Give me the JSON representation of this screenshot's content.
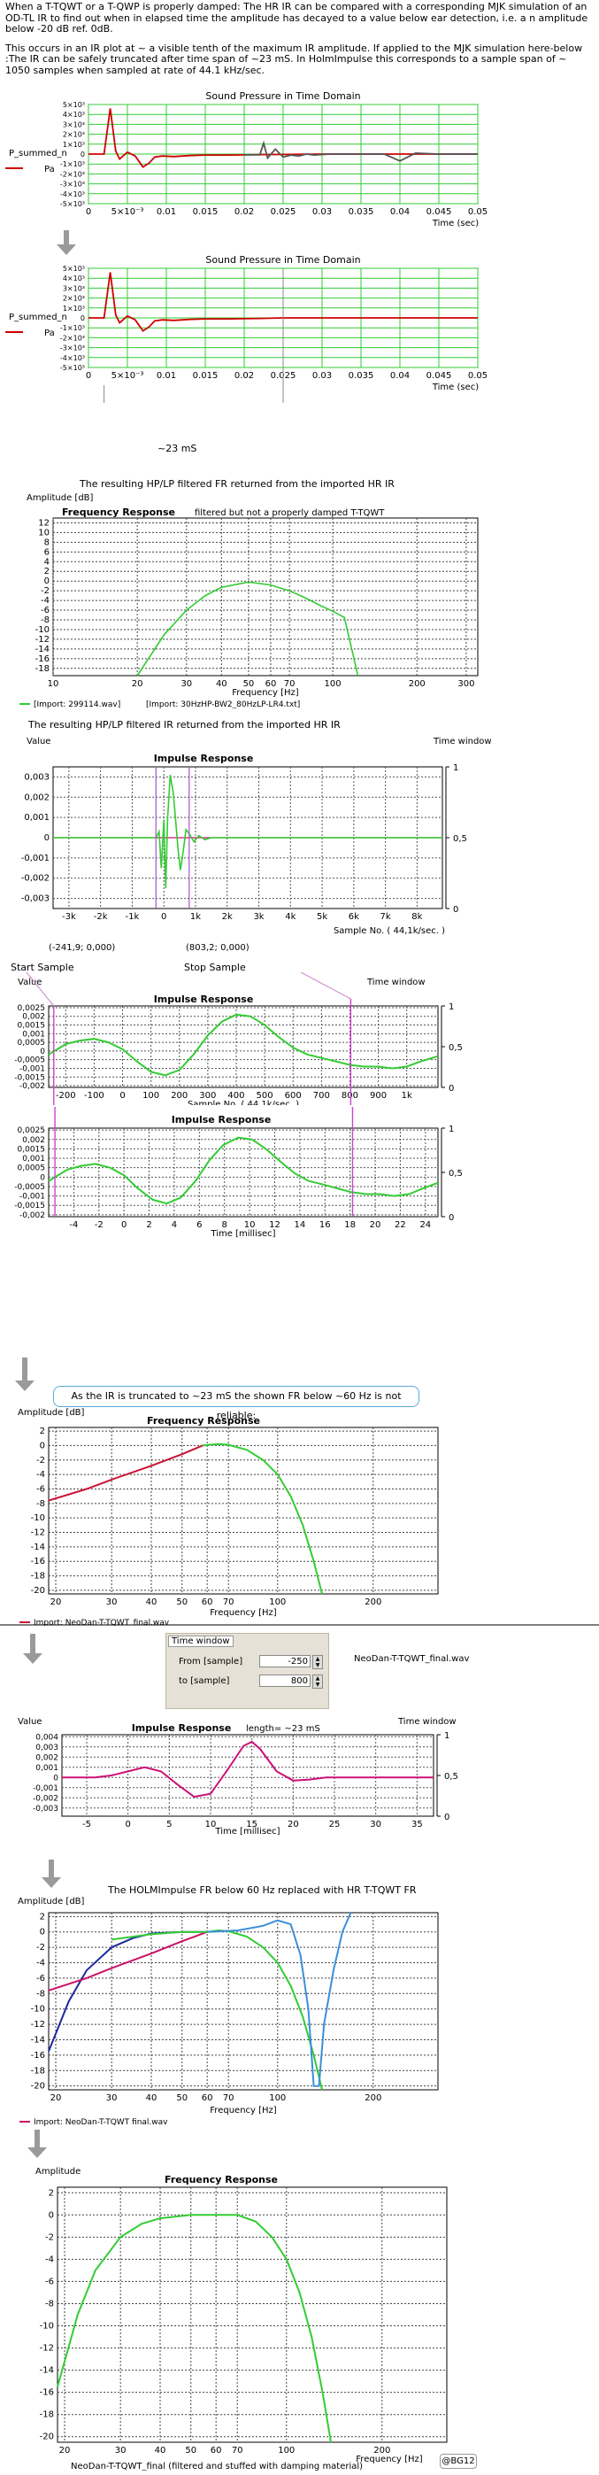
{
  "intro": {
    "p1": "When a T-TQWT or a T-QWP is properly damped: The HR IR can be compared with a corresponding MJK simulation of an OD-TL IR to find out when in elapsed time the amplitude has decayed to a value below ear detection, i.e. a n amplitude below -20 dB ref. 0dB.",
    "p2": "This occurs in an IR plot at ~ a visible tenth of the maximum IR amplitude. If applied to the MJK simulation here-below :The IR can be safely truncated after time span of ~23 mS. In HolmImpulse this corresponds to a sample span of ~ 1050 samples when sampled at rate of 44.1 kHz/sec."
  },
  "captions": {
    "fr_import": "The resulting HP/LP filtered  FR  returned from the imported HR IR",
    "ir_import": "The resulting HP/LP filtered  IR  returned from the imported HR IR",
    "fr_holm": "The HOLMImpulse FR below 60 Hz replaced with HR T-TQWT FR",
    "truncated_note": "As the IR is truncated to ~23 mS the shown FR below ~60 Hz is not reliable:",
    "start_sample": "Start Sample",
    "stop_sample": "Stop Sample",
    "start_coord": "(-241,9; 0,000)",
    "stop_coord": "(803,2; 0,000)",
    "span_23ms": "~23 mS",
    "signature": "@BG12"
  },
  "time_window": {
    "header": "Time window",
    "from_label": "From [sample]",
    "from_value": "-250",
    "to_label": "to [sample]",
    "to_value": "800",
    "file": "NeoDan-T-TQWT_final.wav"
  },
  "chart_data": [
    {
      "id": "spl1",
      "type": "line",
      "title": "Sound Pressure in Time Domain",
      "xlabel": "Time (sec)",
      "ylabel": "P_summed_n",
      "legend": [
        "Pa"
      ],
      "xticks": [
        "0",
        "5×10⁻³",
        "0.01",
        "0.015",
        "0.02",
        "0.025",
        "0.03",
        "0.035",
        "0.04",
        "0.045",
        "0.05"
      ],
      "yticks": [
        "5×10³",
        "4×10³",
        "3×10³",
        "2×10³",
        "1×10³",
        "0",
        "-1×10³",
        "-2×10³",
        "-3×10³",
        "-4×10³",
        "-5×10³"
      ],
      "xlim": [
        0,
        0.05
      ],
      "ylim": [
        -5000,
        5000
      ],
      "series": [
        {
          "color": "#d00000",
          "x": [
            0,
            0.002,
            0.0028,
            0.0035,
            0.004,
            0.005,
            0.006,
            0.007,
            0.0078,
            0.0085,
            0.0095,
            0.011,
            0.013,
            0.015,
            0.018,
            0.022,
            0.03,
            0.04,
            0.05
          ],
          "y": [
            0,
            0,
            4600,
            300,
            -500,
            200,
            -200,
            -1300,
            -900,
            -300,
            -200,
            -250,
            -150,
            -100,
            -100,
            -50,
            0,
            0,
            0
          ]
        },
        {
          "color": "#555555",
          "x": [
            0.02,
            0.022,
            0.0225,
            0.023,
            0.024,
            0.025,
            0.026,
            0.027,
            0.028,
            0.029,
            0.031,
            0.038,
            0.04,
            0.042,
            0.045,
            0.05
          ],
          "y": [
            -80,
            -80,
            1100,
            -400,
            500,
            -300,
            -100,
            -200,
            0,
            -100,
            0,
            0,
            -700,
            100,
            0,
            0
          ]
        }
      ]
    },
    {
      "id": "spl2",
      "type": "line",
      "title": "Sound Pressure in Time Domain",
      "xlabel": "Time (sec)",
      "ylabel": "P_summed_n",
      "legend": [
        "Pa"
      ],
      "xticks": [
        "0",
        "5×10⁻³",
        "0.01",
        "0.015",
        "0.02",
        "0.025",
        "0.03",
        "0.035",
        "0.04",
        "0.045",
        "0.05"
      ],
      "yticks": [
        "5×10³",
        "4×10³",
        "3×10³",
        "2×10³",
        "1×10³",
        "0",
        "-1×10³",
        "-2×10³",
        "-3×10³",
        "-4×10³",
        "-5×10³"
      ],
      "xlim": [
        0,
        0.05
      ],
      "ylim": [
        -5000,
        5000
      ],
      "series": [
        {
          "color": "#d00000",
          "x": [
            0,
            0.002,
            0.0028,
            0.0035,
            0.004,
            0.005,
            0.006,
            0.007,
            0.0078,
            0.0085,
            0.0095,
            0.011,
            0.013,
            0.015,
            0.018,
            0.022,
            0.025,
            0.03,
            0.05
          ],
          "y": [
            0,
            0,
            4600,
            300,
            -500,
            200,
            -200,
            -1300,
            -900,
            -300,
            -200,
            -250,
            -150,
            -100,
            -100,
            -50,
            0,
            0,
            0
          ]
        }
      ]
    },
    {
      "id": "fr1",
      "type": "line",
      "title": "Frequency Response",
      "subtitle": "filtered but not a properly damped T-TQWT",
      "ylabel": "Amplitude [dB]",
      "xlabel": "Frequency [Hz]",
      "log_x": true,
      "xlim": [
        10,
        330
      ],
      "ylim": [
        -19.5,
        13
      ],
      "xticks": [
        10,
        20,
        30,
        40,
        50,
        60,
        70,
        100,
        200,
        300
      ],
      "yticks": [
        12,
        10,
        8,
        6,
        4,
        2,
        0,
        -2,
        -4,
        -6,
        -8,
        -10,
        -12,
        -14,
        -16,
        -18
      ],
      "legend": [
        "[Import: 299114.wav]",
        "[Import: 30HzHP-BW2_80HzLP-LR4.txt]"
      ],
      "series": [
        {
          "color": "#33cc33",
          "x": [
            20,
            25,
            30,
            35,
            40,
            50,
            60,
            70,
            80,
            90,
            100,
            110,
            118,
            123
          ],
          "y": [
            -19.5,
            -11,
            -6,
            -3,
            -1.3,
            -0.2,
            -0.8,
            -2,
            -3.5,
            -5,
            -6.2,
            -7.5,
            -15,
            -19.5
          ]
        }
      ]
    },
    {
      "id": "ir1",
      "type": "line",
      "title": "Impulse Response",
      "xlabel": "Sample No. ( 44,1k/sec. )",
      "ylabel": "Value",
      "right_label": "Time window",
      "xlim": [
        -3500,
        8800
      ],
      "ylim": [
        -0.0035,
        0.0035
      ],
      "xticks": [
        "-3k",
        "-2k",
        "-1k",
        "0",
        "1k",
        "2k",
        "3k",
        "4k",
        "5k",
        "6k",
        "7k",
        "8k"
      ],
      "yticks": [
        "0,003",
        "0,002",
        "0,001",
        "0",
        "-0,001",
        "-0,002",
        "-0,003"
      ],
      "right_ticks": [
        "1",
        "0,5",
        "0"
      ],
      "series": [
        {
          "color": "#33cc33",
          "x": [
            -3500,
            -250,
            -150,
            -80,
            0,
            60,
            120,
            200,
            300,
            380,
            450,
            520,
            600,
            700,
            800,
            950,
            1100,
            1300,
            1500,
            2000,
            2500,
            8800
          ],
          "y": [
            0,
            0,
            0.0003,
            -0.0015,
            0.0009,
            -0.0025,
            0.001,
            0.0031,
            0.0022,
            0.0007,
            -0.0006,
            -0.0016,
            -0.0008,
            0.0004,
            0.0002,
            -0.0002,
            0.0001,
            -0.0001,
            0,
            0,
            0,
            0
          ]
        }
      ]
    },
    {
      "id": "ir2",
      "type": "line",
      "title": "Impulse Response",
      "xlabel": "Sample No. ( 44,1k/sec. )",
      "ylabel": "Value",
      "right_label": "Time window",
      "xlim": [
        -260,
        1110
      ],
      "ylim": [
        -0.0021,
        0.0026
      ],
      "xticks": [
        "-200",
        "-100",
        "0",
        "100",
        "200",
        "300",
        "400",
        "500",
        "600",
        "700",
        "800",
        "900",
        "1k"
      ],
      "yticks": [
        "0,0025",
        "0,002",
        "0,0015",
        "0,001",
        "0,0005",
        "0",
        "-0,0005",
        "-0,001",
        "-0,0015",
        "-0,002"
      ],
      "right_ticks": [
        "1",
        "0,5",
        "0"
      ],
      "series": [
        {
          "color": "#33cc33",
          "x": [
            -260,
            -200,
            -150,
            -100,
            -50,
            0,
            50,
            100,
            150,
            200,
            250,
            300,
            350,
            400,
            450,
            500,
            550,
            600,
            650,
            700,
            750,
            800,
            850,
            900,
            950,
            1000,
            1050,
            1110
          ],
          "y": [
            -0.0002,
            0.0004,
            0.0006,
            0.0007,
            0.0005,
            0.0001,
            -0.0006,
            -0.0012,
            -0.0014,
            -0.0011,
            -0.0002,
            0.0009,
            0.0017,
            0.0021,
            0.002,
            0.0015,
            0.0008,
            0.0002,
            -0.0002,
            -0.0004,
            -0.0006,
            -0.0008,
            -0.0009,
            -0.0009,
            -0.001,
            -0.0009,
            -0.0006,
            -0.0003
          ]
        }
      ]
    },
    {
      "id": "ir3",
      "type": "line",
      "title": "Impulse Response",
      "xlabel": "Time [millisec]",
      "right_label": "",
      "xlim": [
        -6,
        25
      ],
      "ylim": [
        -0.0021,
        0.0026
      ],
      "xticks": [
        "-4",
        "-2",
        "0",
        "2",
        "4",
        "6",
        "8",
        "10",
        "12",
        "14",
        "16",
        "18",
        "20",
        "22",
        "24"
      ],
      "yticks": [
        "0,0025",
        "0,002",
        "0,0015",
        "0,001",
        "0,0005",
        "0",
        "-0,0005",
        "-0,001",
        "-0,0015",
        "-0,002"
      ],
      "right_ticks": [
        "1",
        "0,5",
        "0"
      ],
      "series": [
        {
          "color": "#33cc33",
          "x": [
            -6,
            -4.5,
            -3.4,
            -2.3,
            -1.1,
            0,
            1.1,
            2.3,
            3.4,
            4.5,
            5.7,
            6.8,
            7.9,
            9.1,
            10.2,
            11.3,
            12.5,
            13.6,
            14.7,
            15.9,
            17,
            18.1,
            19.3,
            20.4,
            21.5,
            22.7,
            23.8,
            25
          ],
          "y": [
            -0.0002,
            0.0004,
            0.0006,
            0.0007,
            0.0005,
            0.0001,
            -0.0006,
            -0.0012,
            -0.0014,
            -0.0011,
            -0.0002,
            0.0009,
            0.0017,
            0.0021,
            0.002,
            0.0015,
            0.0008,
            0.0002,
            -0.0002,
            -0.0004,
            -0.0006,
            -0.0008,
            -0.0009,
            -0.0009,
            -0.001,
            -0.0009,
            -0.0006,
            -0.0003
          ]
        }
      ]
    },
    {
      "id": "fr2",
      "type": "line",
      "title": "Frequency Response",
      "ylabel": "Amplitude [dB]",
      "xlabel": "Frequency [Hz]",
      "log_x": true,
      "xlim": [
        19,
        320
      ],
      "ylim": [
        -20.5,
        2.5
      ],
      "xticks": [
        20,
        30,
        40,
        50,
        60,
        70,
        100,
        200
      ],
      "yticks": [
        2,
        0,
        -2,
        -4,
        -6,
        -8,
        -10,
        -12,
        -14,
        -16,
        -18,
        -20
      ],
      "legend": [
        "Import: NeoDan-T-TQWT_final.wav"
      ],
      "series": [
        {
          "color": "#cc1133",
          "x": [
            19,
            25,
            30,
            40,
            50,
            58
          ],
          "y": [
            -7.6,
            -6,
            -4.7,
            -2.8,
            -1.2,
            0
          ]
        },
        {
          "color": "#33cc33",
          "x": [
            58,
            65,
            70,
            80,
            90,
            100,
            110,
            120,
            130,
            138
          ],
          "y": [
            0,
            0.2,
            0.1,
            -0.6,
            -2,
            -4,
            -7,
            -11,
            -16,
            -20.5
          ]
        }
      ]
    },
    {
      "id": "ir4",
      "type": "line",
      "title": "Impulse Response",
      "subtitle": "length= ~23 mS",
      "xlabel": "Time [millisec]",
      "ylabel": "Value",
      "right_label": "Time window",
      "xlim": [
        -8,
        37
      ],
      "ylim": [
        -0.0038,
        0.0042
      ],
      "xticks": [
        "-5",
        "0",
        "5",
        "10",
        "15",
        "20",
        "25",
        "30",
        "35"
      ],
      "yticks": [
        "0,004",
        "0,003",
        "0,002",
        "0,001",
        "0",
        "-0,001",
        "-0,002",
        "-0,003"
      ],
      "right_ticks": [
        "1",
        "0,5",
        "0"
      ],
      "series": [
        {
          "color": "#cc1177",
          "x": [
            -8,
            -5.7,
            -4,
            -2,
            0,
            2,
            4,
            6,
            8,
            10,
            12,
            14,
            15,
            16,
            18,
            20,
            22,
            24,
            37
          ],
          "y": [
            0,
            0,
            0,
            0.0002,
            0.0006,
            0.001,
            0.0006,
            -0.0007,
            -0.0019,
            -0.0016,
            0.0007,
            0.0031,
            0.0035,
            0.0028,
            0.0006,
            -0.0003,
            -0.0002,
            0,
            0
          ]
        }
      ]
    },
    {
      "id": "fr3",
      "type": "line",
      "title": "",
      "ylabel": "Amplitude [dB]",
      "xlabel": "Frequency [Hz]",
      "log_x": true,
      "xlim": [
        19,
        320
      ],
      "ylim": [
        -20.5,
        2.5
      ],
      "xticks": [
        20,
        30,
        40,
        50,
        60,
        70,
        100,
        200
      ],
      "yticks": [
        2,
        0,
        -2,
        -4,
        -6,
        -8,
        -10,
        -12,
        -14,
        -16,
        -18,
        -20
      ],
      "legend": [
        "Import: NeoDan-T-TQWT  final.wav"
      ],
      "series": [
        {
          "color": "#1a2aa0",
          "x": [
            19,
            22,
            25,
            30,
            35,
            40,
            50,
            60
          ],
          "y": [
            -15.5,
            -9,
            -5,
            -2,
            -0.8,
            -0.2,
            0,
            0
          ]
        },
        {
          "color": "#cc1166",
          "x": [
            19,
            25,
            30,
            40,
            50,
            60
          ],
          "y": [
            -7.6,
            -6,
            -4.7,
            -2.8,
            -1.2,
            0
          ]
        },
        {
          "color": "#33cc33",
          "x": [
            30,
            40,
            50,
            60,
            65,
            70,
            80,
            90,
            100,
            110,
            120,
            130,
            138
          ],
          "y": [
            -1,
            -0.3,
            0,
            0,
            0.2,
            0.1,
            -0.6,
            -2,
            -4,
            -7,
            -11,
            -16,
            -20.5
          ]
        },
        {
          "color": "#3a8fd8",
          "x": [
            60,
            75,
            90,
            100,
            110,
            118,
            125,
            130,
            135,
            140,
            150,
            160,
            170
          ],
          "y": [
            0,
            0.2,
            0.8,
            1.5,
            1,
            -3,
            -10,
            -20,
            -20,
            -12,
            -5,
            0,
            2.5
          ]
        }
      ]
    },
    {
      "id": "fr4",
      "type": "line",
      "title": "Frequency Response",
      "ylabel": "Amplitude",
      "xlabel": "Frequency [Hz]",
      "log_x": true,
      "xlim": [
        19,
        320
      ],
      "ylim": [
        -20.5,
        2.5
      ],
      "xticks": [
        20,
        30,
        40,
        50,
        60,
        70,
        100,
        200
      ],
      "yticks": [
        2,
        0,
        -2,
        -4,
        -6,
        -8,
        -10,
        -12,
        -14,
        -16,
        -18,
        -20
      ],
      "legend": [
        "NeoDan-T-TQWT_final (filtered and stuffed with damping material)"
      ],
      "series": [
        {
          "color": "#33cc33",
          "x": [
            19,
            22,
            25,
            30,
            35,
            40,
            50,
            60,
            70,
            80,
            90,
            100,
            110,
            120,
            130,
            138
          ],
          "y": [
            -15.5,
            -9,
            -5,
            -2,
            -0.8,
            -0.3,
            0,
            0,
            0,
            -0.6,
            -2,
            -4,
            -7,
            -11,
            -16,
            -20.5
          ]
        }
      ]
    }
  ]
}
